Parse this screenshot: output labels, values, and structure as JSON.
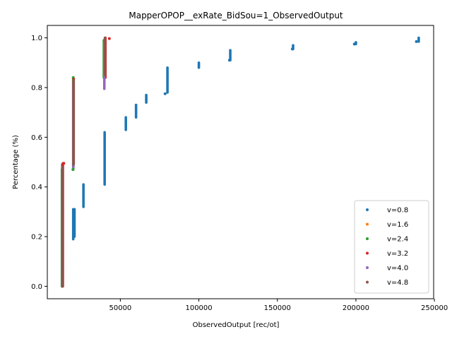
{
  "chart_data": {
    "type": "scatter",
    "title": "MapperOPOP__exRate_BidSou=1_ObservedOutput",
    "xlabel": "ObservedOutput [rec/ot]",
    "ylabel": "Percentage (%)",
    "xlim": [
      3500,
      249500
    ],
    "ylim": [
      -0.05,
      1.05
    ],
    "xticks": [
      50000,
      100000,
      150000,
      200000,
      250000
    ],
    "xtick_labels": [
      "50000",
      "100000",
      "150000",
      "200000",
      "250000"
    ],
    "yticks": [
      0.0,
      0.2,
      0.4,
      0.6,
      0.8,
      1.0
    ],
    "ytick_labels": [
      "0.0",
      "0.2",
      "0.4",
      "0.6",
      "0.8",
      "1.0"
    ],
    "grid": false,
    "legend_position": "lower-right",
    "series": [
      {
        "name": "v=0.8",
        "color": "#1f77b4",
        "segments": [
          {
            "x": 13000,
            "y0": 0.0,
            "y1": 0.49
          },
          {
            "x": 20000,
            "y0": 0.19,
            "y1": 0.31
          },
          {
            "x": 20800,
            "y0": 0.2,
            "y1": 0.31
          },
          {
            "x": 26500,
            "y0": 0.32,
            "y1": 0.41
          },
          {
            "x": 40000,
            "y0": 0.41,
            "y1": 0.62
          },
          {
            "x": 53500,
            "y0": 0.63,
            "y1": 0.68
          },
          {
            "x": 60000,
            "y0": 0.68,
            "y1": 0.73
          },
          {
            "x": 66500,
            "y0": 0.74,
            "y1": 0.77
          },
          {
            "x": 80000,
            "y0": 0.78,
            "y1": 0.88
          },
          {
            "x": 100000,
            "y0": 0.88,
            "y1": 0.9
          },
          {
            "x": 120000,
            "y0": 0.91,
            "y1": 0.95
          },
          {
            "x": 160000,
            "y0": 0.955,
            "y1": 0.97
          },
          {
            "x": 200000,
            "y0": 0.975,
            "y1": 0.982
          },
          {
            "x": 240000,
            "y0": 0.985,
            "y1": 1.0
          }
        ],
        "points": [
          {
            "x": 78500,
            "y": 0.775
          },
          {
            "x": 199000,
            "y": 0.975
          },
          {
            "x": 238500,
            "y": 0.985
          },
          {
            "x": 119500,
            "y": 0.91
          },
          {
            "x": 159500,
            "y": 0.955
          }
        ]
      },
      {
        "name": "v=1.6",
        "color": "#ff7f0e",
        "segments": [
          {
            "x": 13000,
            "y0": 0.0,
            "y1": 0.48
          },
          {
            "x": 20000,
            "y0": 0.48,
            "y1": 0.83
          },
          {
            "x": 40000,
            "y0": 0.85,
            "y1": 0.99
          }
        ],
        "points": []
      },
      {
        "name": "v=2.4",
        "color": "#2ca02c",
        "segments": [
          {
            "x": 12800,
            "y0": 0.0,
            "y1": 0.47
          },
          {
            "x": 20000,
            "y0": 0.47,
            "y1": 0.84
          },
          {
            "x": 39500,
            "y0": 0.84,
            "y1": 0.99
          }
        ],
        "points": [
          {
            "x": 19800,
            "y": 0.47
          },
          {
            "x": 20000,
            "y": 0.84
          }
        ]
      },
      {
        "name": "v=3.2",
        "color": "#d62728",
        "segments": [
          {
            "x": 13400,
            "y0": 0.0,
            "y1": 0.495
          },
          {
            "x": 20300,
            "y0": 0.495,
            "y1": 0.835
          },
          {
            "x": 40500,
            "y0": 0.84,
            "y1": 1.0
          }
        ],
        "points": [
          {
            "x": 43000,
            "y": 0.997
          },
          {
            "x": 14000,
            "y": 0.495
          }
        ]
      },
      {
        "name": "v=4.0",
        "color": "#9467bd",
        "segments": [
          {
            "x": 13100,
            "y0": 0.0,
            "y1": 0.47
          },
          {
            "x": 20100,
            "y0": 0.48,
            "y1": 0.82
          },
          {
            "x": 39800,
            "y0": 0.795,
            "y1": 0.98
          }
        ],
        "points": []
      },
      {
        "name": "v=4.8",
        "color": "#8c564b",
        "segments": [
          {
            "x": 13200,
            "y0": 0.0,
            "y1": 0.48
          },
          {
            "x": 20200,
            "y0": 0.49,
            "y1": 0.83
          },
          {
            "x": 40200,
            "y0": 0.85,
            "y1": 1.0
          }
        ],
        "points": []
      }
    ]
  }
}
